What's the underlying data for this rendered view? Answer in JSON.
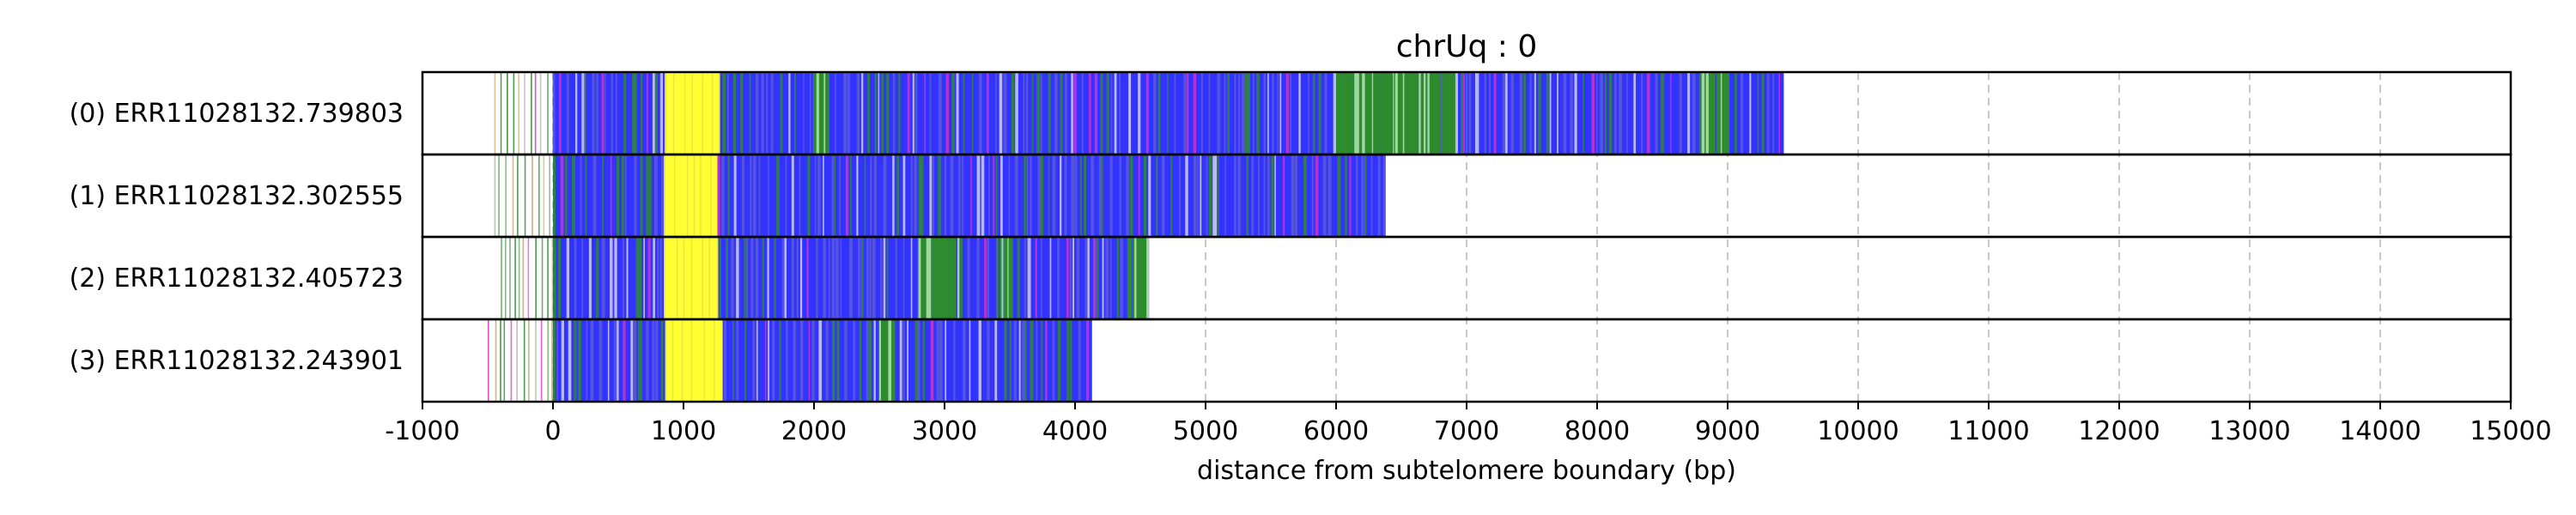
{
  "chart_data": {
    "type": "bar",
    "title": "chrUq : 0",
    "xlabel": "distance from subtelomere boundary (bp)",
    "ylabel": "",
    "xlim": [
      -1000,
      15000
    ],
    "xticks": [
      -1000,
      0,
      1000,
      2000,
      3000,
      4000,
      5000,
      6000,
      7000,
      8000,
      9000,
      10000,
      11000,
      12000,
      13000,
      14000,
      15000
    ],
    "x_grid": true,
    "grid_style": "dashed light gray vertical lines at each x tick",
    "row_labels": [
      "(0) ERR11028132.739803",
      "(1) ERR11028132.302555",
      "(2) ERR11028132.405723",
      "(3) ERR11028132.243901"
    ],
    "colors": {
      "repeat_main": "#3333ff",
      "yellow_block": "#ffff33",
      "minor_green": "#2e8b2e",
      "minor_gray": "#aaaaaa",
      "minor_magenta": "#cc33cc",
      "minor_tan": "#c8a060"
    },
    "reads": [
      {
        "read_start": -450,
        "read_end": 9430,
        "blue_start": 0,
        "blue_end": 9430,
        "yellow_start": 860,
        "yellow_end": 1280,
        "green_clusters": [
          [
            2000,
            2100
          ],
          [
            6000,
            6700
          ],
          [
            6700,
            6900
          ],
          [
            8800,
            9000
          ]
        ]
      },
      {
        "read_start": -450,
        "read_end": 6380,
        "blue_start": 0,
        "blue_end": 6380,
        "yellow_start": 850,
        "yellow_end": 1260,
        "green_clusters": []
      },
      {
        "read_start": -400,
        "read_end": 4560,
        "blue_start": 0,
        "blue_end": 4560,
        "yellow_start": 850,
        "yellow_end": 1260,
        "green_clusters": [
          [
            2800,
            3100
          ],
          [
            3400,
            3500
          ],
          [
            4400,
            4560
          ]
        ]
      },
      {
        "read_start": -500,
        "read_end": 4130,
        "blue_start": 0,
        "blue_end": 4130,
        "yellow_start": 860,
        "yellow_end": 1300,
        "green_clusters": [
          [
            2500,
            2600
          ]
        ]
      }
    ]
  }
}
